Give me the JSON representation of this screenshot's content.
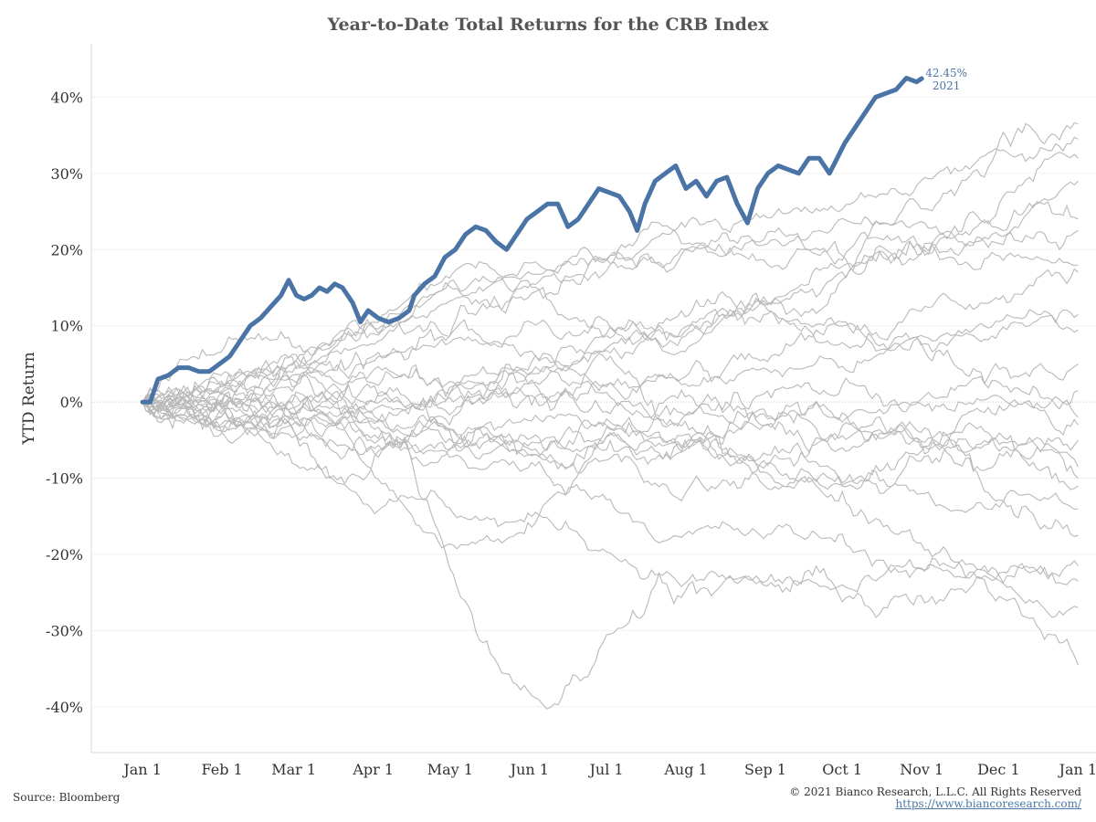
{
  "chart_data": {
    "type": "line",
    "title": "Year-to-Date Total Returns for the CRB Index",
    "xlabel": "",
    "ylabel": "YTD Return",
    "x_tick_labels": [
      "Jan 1",
      "Feb 1",
      "Mar 1",
      "Apr 1",
      "May 1",
      "Jun 1",
      "Jul 1",
      "Aug 1",
      "Sep 1",
      "Oct 1",
      "Nov 1",
      "Dec 1",
      "Jan 1"
    ],
    "x_tick_days": [
      0,
      31,
      59,
      90,
      120,
      151,
      181,
      212,
      243,
      273,
      304,
      334,
      365
    ],
    "y_tick_labels": [
      "40%",
      "30%",
      "20%",
      "10%",
      "0%",
      "-10%",
      "-20%",
      "-30%",
      "-40%"
    ],
    "y_tick_values": [
      40,
      30,
      20,
      10,
      0,
      -10,
      -20,
      -30,
      -40
    ],
    "ylim": [
      -46,
      47
    ],
    "xlim": [
      -20,
      372
    ],
    "grid": true,
    "zero_line": "dotted",
    "highlight_series": {
      "name": "2021",
      "color": "#4a74a6",
      "end_label": "42.45%",
      "end_value": 42.45,
      "points": [
        [
          0,
          0
        ],
        [
          3,
          0
        ],
        [
          6,
          3
        ],
        [
          10,
          3.5
        ],
        [
          14,
          4.5
        ],
        [
          18,
          4.5
        ],
        [
          22,
          4
        ],
        [
          26,
          4
        ],
        [
          30,
          5
        ],
        [
          34,
          6
        ],
        [
          38,
          8
        ],
        [
          42,
          10
        ],
        [
          46,
          11
        ],
        [
          50,
          12.5
        ],
        [
          54,
          14
        ],
        [
          57,
          16
        ],
        [
          60,
          14
        ],
        [
          63,
          13.5
        ],
        [
          66,
          14
        ],
        [
          69,
          15
        ],
        [
          72,
          14.5
        ],
        [
          75,
          15.5
        ],
        [
          78,
          15
        ],
        [
          82,
          13
        ],
        [
          85,
          10.5
        ],
        [
          88,
          12
        ],
        [
          92,
          11
        ],
        [
          96,
          10.5
        ],
        [
          100,
          11
        ],
        [
          104,
          12
        ],
        [
          106,
          14
        ],
        [
          110,
          15.5
        ],
        [
          114,
          16.5
        ],
        [
          118,
          19
        ],
        [
          122,
          20
        ],
        [
          126,
          22
        ],
        [
          130,
          23
        ],
        [
          134,
          22.5
        ],
        [
          138,
          21
        ],
        [
          142,
          20
        ],
        [
          146,
          22
        ],
        [
          150,
          24
        ],
        [
          154,
          25
        ],
        [
          158,
          26
        ],
        [
          162,
          26
        ],
        [
          166,
          23
        ],
        [
          170,
          24
        ],
        [
          174,
          26
        ],
        [
          178,
          28
        ],
        [
          182,
          27.5
        ],
        [
          186,
          27
        ],
        [
          190,
          25
        ],
        [
          193,
          22.5
        ],
        [
          196,
          26
        ],
        [
          200,
          29
        ],
        [
          204,
          30
        ],
        [
          208,
          31
        ],
        [
          212,
          28
        ],
        [
          216,
          29
        ],
        [
          220,
          27
        ],
        [
          224,
          29
        ],
        [
          228,
          29.5
        ],
        [
          232,
          26
        ],
        [
          236,
          23.5
        ],
        [
          240,
          28
        ],
        [
          244,
          30
        ],
        [
          248,
          31
        ],
        [
          252,
          30.5
        ],
        [
          256,
          30
        ],
        [
          260,
          32
        ],
        [
          264,
          32
        ],
        [
          268,
          30
        ],
        [
          271,
          32
        ],
        [
          274,
          34
        ],
        [
          278,
          36
        ],
        [
          282,
          38
        ],
        [
          286,
          40
        ],
        [
          290,
          40.5
        ],
        [
          294,
          41
        ],
        [
          298,
          42.5
        ],
        [
          302,
          42
        ],
        [
          304,
          42.45
        ]
      ]
    },
    "other_series": {
      "color": "#b9b9b9",
      "count": 24,
      "endpoints": [
        36.5,
        34.5,
        32,
        29,
        24,
        22.5,
        18,
        17,
        11.5,
        9.5,
        1.5,
        -2,
        -3,
        -5,
        -8.5,
        -10,
        -11,
        -17.5,
        -21.5,
        -23.5,
        -27,
        -34.5,
        -14,
        5
      ]
    }
  },
  "footer": {
    "source": "Source: Bloomberg",
    "copyright": "© 2021 Bianco Research, L.L.C. All Rights Reserved",
    "url": "https://www.biancoresearch.com/"
  }
}
